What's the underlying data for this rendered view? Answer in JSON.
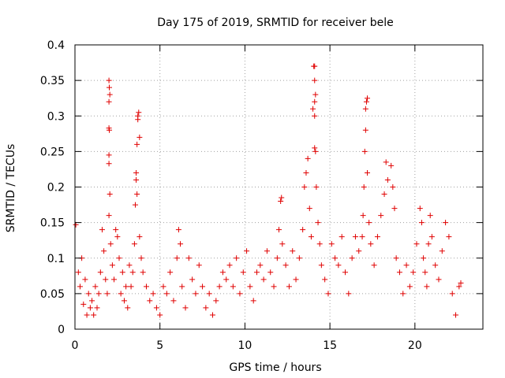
{
  "chart_data": {
    "type": "scatter",
    "title": "Day 175 of 2019, SRMTID for receiver bele",
    "xlabel": "GPS time / hours",
    "ylabel": "SRMTID / TECUs",
    "xlim": [
      0,
      24
    ],
    "ylim": [
      0,
      0.4
    ],
    "x_ticks": [
      0,
      5,
      10,
      15,
      20
    ],
    "y_ticks": [
      0,
      0.05,
      0.1,
      0.15,
      0.2,
      0.25,
      0.3,
      0.35,
      0.4
    ],
    "x_tick_labels": [
      "0",
      "5",
      "10",
      "15",
      "20"
    ],
    "y_tick_labels": [
      "0",
      "0.05",
      "0.1",
      "0.15",
      "0.2",
      "0.25",
      "0.3",
      "0.35",
      "0.4"
    ],
    "grid": true,
    "marker": "+",
    "color": "#e00000",
    "series": [
      {
        "name": "SRMTID",
        "points": [
          [
            0.05,
            0.147
          ],
          [
            0.2,
            0.08
          ],
          [
            0.3,
            0.06
          ],
          [
            0.4,
            0.1
          ],
          [
            0.5,
            0.035
          ],
          [
            0.6,
            0.07
          ],
          [
            0.7,
            0.02
          ],
          [
            0.8,
            0.05
          ],
          [
            0.9,
            0.03
          ],
          [
            1.0,
            0.04
          ],
          [
            1.1,
            0.02
          ],
          [
            1.2,
            0.06
          ],
          [
            1.3,
            0.03
          ],
          [
            1.4,
            0.05
          ],
          [
            1.5,
            0.08
          ],
          [
            1.6,
            0.14
          ],
          [
            1.7,
            0.11
          ],
          [
            1.8,
            0.07
          ],
          [
            1.9,
            0.05
          ],
          [
            2.0,
            0.35
          ],
          [
            2.02,
            0.34
          ],
          [
            2.05,
            0.33
          ],
          [
            2.0,
            0.32
          ],
          [
            2.0,
            0.283
          ],
          [
            2.02,
            0.28
          ],
          [
            2.0,
            0.245
          ],
          [
            2.0,
            0.233
          ],
          [
            2.05,
            0.19
          ],
          [
            2.0,
            0.16
          ],
          [
            2.1,
            0.12
          ],
          [
            2.2,
            0.09
          ],
          [
            2.3,
            0.07
          ],
          [
            2.4,
            0.14
          ],
          [
            2.5,
            0.13
          ],
          [
            2.6,
            0.1
          ],
          [
            2.7,
            0.05
          ],
          [
            2.8,
            0.08
          ],
          [
            2.9,
            0.04
          ],
          [
            3.0,
            0.06
          ],
          [
            3.1,
            0.03
          ],
          [
            3.2,
            0.09
          ],
          [
            3.3,
            0.06
          ],
          [
            3.4,
            0.08
          ],
          [
            3.5,
            0.12
          ],
          [
            3.55,
            0.175
          ],
          [
            3.6,
            0.21
          ],
          [
            3.65,
            0.26
          ],
          [
            3.7,
            0.3
          ],
          [
            3.75,
            0.305
          ],
          [
            3.7,
            0.295
          ],
          [
            3.8,
            0.27
          ],
          [
            3.6,
            0.22
          ],
          [
            3.65,
            0.19
          ],
          [
            3.8,
            0.13
          ],
          [
            3.9,
            0.1
          ],
          [
            4.0,
            0.08
          ],
          [
            4.2,
            0.06
          ],
          [
            4.4,
            0.04
          ],
          [
            4.6,
            0.05
          ],
          [
            4.8,
            0.03
          ],
          [
            5.0,
            0.02
          ],
          [
            5.2,
            0.06
          ],
          [
            5.4,
            0.05
          ],
          [
            5.6,
            0.08
          ],
          [
            5.8,
            0.04
          ],
          [
            6.0,
            0.1
          ],
          [
            6.1,
            0.14
          ],
          [
            6.2,
            0.12
          ],
          [
            6.3,
            0.06
          ],
          [
            6.5,
            0.03
          ],
          [
            6.7,
            0.1
          ],
          [
            6.9,
            0.07
          ],
          [
            7.1,
            0.05
          ],
          [
            7.3,
            0.09
          ],
          [
            7.5,
            0.06
          ],
          [
            7.7,
            0.03
          ],
          [
            7.9,
            0.05
          ],
          [
            8.1,
            0.02
          ],
          [
            8.3,
            0.04
          ],
          [
            8.5,
            0.06
          ],
          [
            8.7,
            0.08
          ],
          [
            8.9,
            0.07
          ],
          [
            9.1,
            0.09
          ],
          [
            9.3,
            0.06
          ],
          [
            9.5,
            0.1
          ],
          [
            9.7,
            0.05
          ],
          [
            9.9,
            0.08
          ],
          [
            10.1,
            0.11
          ],
          [
            10.3,
            0.06
          ],
          [
            10.5,
            0.04
          ],
          [
            10.7,
            0.08
          ],
          [
            10.9,
            0.09
          ],
          [
            11.1,
            0.07
          ],
          [
            11.3,
            0.11
          ],
          [
            11.5,
            0.08
          ],
          [
            11.7,
            0.06
          ],
          [
            11.9,
            0.1
          ],
          [
            12.0,
            0.14
          ],
          [
            12.1,
            0.18
          ],
          [
            12.15,
            0.185
          ],
          [
            12.2,
            0.12
          ],
          [
            12.4,
            0.09
          ],
          [
            12.6,
            0.06
          ],
          [
            12.8,
            0.11
          ],
          [
            13.0,
            0.07
          ],
          [
            13.2,
            0.1
          ],
          [
            13.4,
            0.14
          ],
          [
            13.5,
            0.2
          ],
          [
            13.6,
            0.22
          ],
          [
            13.7,
            0.24
          ],
          [
            13.8,
            0.17
          ],
          [
            13.9,
            0.13
          ],
          [
            14.0,
            0.31
          ],
          [
            14.05,
            0.37
          ],
          [
            14.1,
            0.37
          ],
          [
            14.1,
            0.35
          ],
          [
            14.15,
            0.33
          ],
          [
            14.1,
            0.32
          ],
          [
            14.1,
            0.3
          ],
          [
            14.1,
            0.255
          ],
          [
            14.15,
            0.25
          ],
          [
            14.2,
            0.2
          ],
          [
            14.3,
            0.15
          ],
          [
            14.4,
            0.12
          ],
          [
            14.5,
            0.09
          ],
          [
            14.7,
            0.07
          ],
          [
            14.9,
            0.05
          ],
          [
            15.1,
            0.12
          ],
          [
            15.3,
            0.1
          ],
          [
            15.5,
            0.09
          ],
          [
            15.7,
            0.13
          ],
          [
            15.9,
            0.08
          ],
          [
            16.1,
            0.05
          ],
          [
            16.3,
            0.1
          ],
          [
            16.5,
            0.13
          ],
          [
            16.7,
            0.11
          ],
          [
            16.9,
            0.13
          ],
          [
            16.95,
            0.16
          ],
          [
            17.0,
            0.2
          ],
          [
            17.05,
            0.25
          ],
          [
            17.1,
            0.28
          ],
          [
            17.15,
            0.32
          ],
          [
            17.2,
            0.325
          ],
          [
            17.1,
            0.31
          ],
          [
            17.2,
            0.22
          ],
          [
            17.3,
            0.15
          ],
          [
            17.4,
            0.12
          ],
          [
            17.6,
            0.09
          ],
          [
            17.8,
            0.13
          ],
          [
            18.0,
            0.16
          ],
          [
            18.2,
            0.19
          ],
          [
            18.3,
            0.235
          ],
          [
            18.4,
            0.21
          ],
          [
            18.6,
            0.23
          ],
          [
            18.7,
            0.2
          ],
          [
            18.8,
            0.17
          ],
          [
            18.9,
            0.1
          ],
          [
            19.1,
            0.08
          ],
          [
            19.3,
            0.05
          ],
          [
            19.5,
            0.09
          ],
          [
            19.7,
            0.06
          ],
          [
            19.9,
            0.08
          ],
          [
            20.1,
            0.12
          ],
          [
            20.3,
            0.17
          ],
          [
            20.4,
            0.15
          ],
          [
            20.5,
            0.1
          ],
          [
            20.6,
            0.08
          ],
          [
            20.7,
            0.06
          ],
          [
            20.8,
            0.12
          ],
          [
            20.9,
            0.16
          ],
          [
            21.0,
            0.13
          ],
          [
            21.2,
            0.09
          ],
          [
            21.4,
            0.07
          ],
          [
            21.6,
            0.11
          ],
          [
            21.8,
            0.15
          ],
          [
            22.0,
            0.13
          ],
          [
            22.2,
            0.05
          ],
          [
            22.4,
            0.02
          ],
          [
            22.6,
            0.06
          ],
          [
            22.7,
            0.065
          ]
        ]
      }
    ]
  }
}
